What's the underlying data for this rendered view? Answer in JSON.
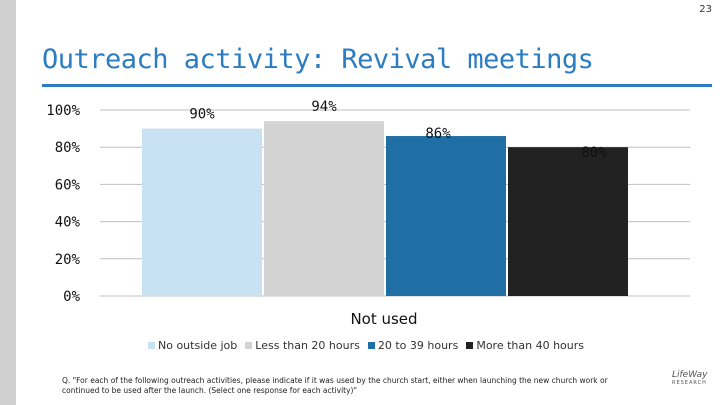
{
  "page_number": "23",
  "title": "Outreach activity: Revival meetings",
  "chart_data": {
    "type": "bar",
    "categories": [
      "Not used"
    ],
    "series": [
      {
        "name": "No outside job",
        "values": [
          90
        ],
        "label": "90%",
        "color": "#c8e2f4"
      },
      {
        "name": "Less than 20 hours",
        "values": [
          94
        ],
        "label": "94%",
        "color": "#d3d3d3"
      },
      {
        "name": "20 to 39 hours",
        "values": [
          86
        ],
        "label": "86%",
        "color": "#1f6ea4"
      },
      {
        "name": "More than 40 hours",
        "values": [
          80
        ],
        "label": "80%",
        "color": "#222222"
      }
    ],
    "ylim": [
      0,
      100
    ],
    "yticks": [
      0,
      20,
      40,
      60,
      80,
      100
    ],
    "ytick_labels": [
      "0%",
      "20%",
      "40%",
      "60%",
      "80%",
      "100%"
    ],
    "xlabel": "Not used",
    "grid": true,
    "legend_position": "bottom"
  },
  "footnote": "Q. \"For each of the following outreach activities, please indicate if it was used by the church start, either when launching the new church work or continued to be used after the launch. (Select one response for each activity)\"",
  "logo": {
    "top": "LifeWay",
    "bottom": "RESEARCH"
  }
}
